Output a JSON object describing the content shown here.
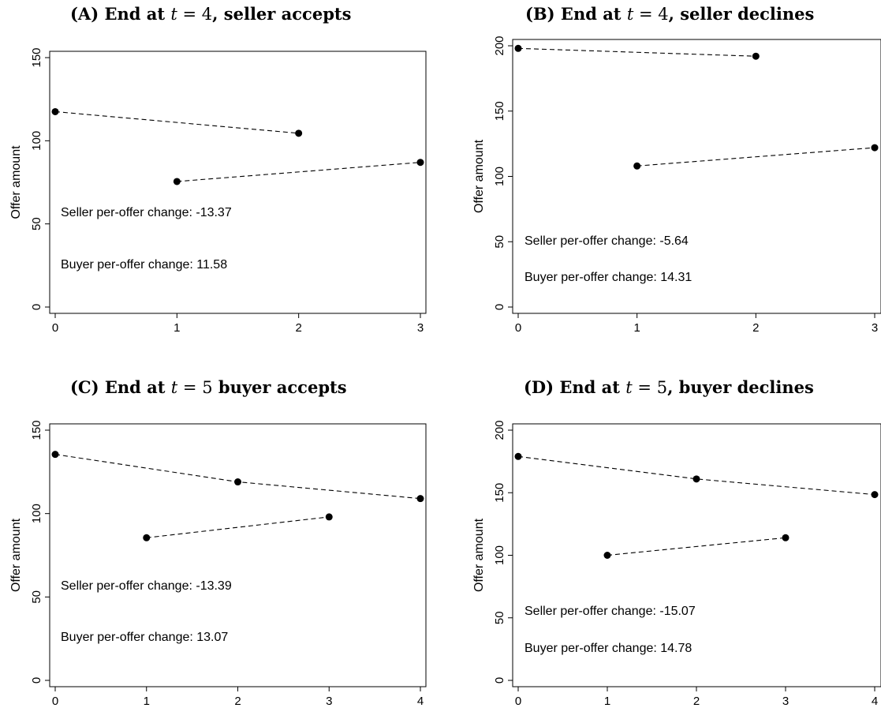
{
  "chart_data": [
    {
      "type": "scatter",
      "title": {
        "prefix": "(A) End at ",
        "var": "t",
        "eq": " = ",
        "num": "4",
        "suffix": ", seller accepts"
      },
      "ylabel": "Offer amount",
      "xlim": [
        0,
        3
      ],
      "ylim": [
        0,
        150
      ],
      "xticks": [
        0,
        1,
        2,
        3
      ],
      "yticks": [
        0,
        50,
        100,
        150
      ],
      "series": [
        {
          "role": "seller",
          "x": [
            0,
            2
          ],
          "y": [
            117.5,
            104.5
          ]
        },
        {
          "role": "buyer",
          "x": [
            1,
            3
          ],
          "y": [
            75.5,
            87
          ]
        }
      ],
      "annotations": [
        "Seller per-offer change: -13.37",
        "Buyer per-offer change: 11.58"
      ]
    },
    {
      "type": "scatter",
      "title": {
        "prefix": "(B) End at ",
        "var": "t",
        "eq": " = ",
        "num": "4",
        "suffix": ", seller declines"
      },
      "ylabel": "Offer amount",
      "xlim": [
        0,
        3
      ],
      "ylim": [
        0,
        200
      ],
      "xticks": [
        0,
        1,
        2,
        3
      ],
      "yticks": [
        0,
        50,
        100,
        150,
        200
      ],
      "series": [
        {
          "role": "seller",
          "x": [
            0,
            2
          ],
          "y": [
            198,
            192
          ]
        },
        {
          "role": "buyer",
          "x": [
            1,
            3
          ],
          "y": [
            108,
            122
          ]
        }
      ],
      "annotations": [
        "Seller per-offer change: -5.64",
        "Buyer per-offer change: 14.31"
      ]
    },
    {
      "type": "scatter",
      "title": {
        "prefix": "(C) End at ",
        "var": "t",
        "eq": " = ",
        "num": "5",
        "suffix": " buyer accepts"
      },
      "ylabel": "Offer amount",
      "xlim": [
        0,
        4
      ],
      "ylim": [
        0,
        150
      ],
      "xticks": [
        0,
        1,
        2,
        3,
        4
      ],
      "yticks": [
        0,
        50,
        100,
        150
      ],
      "series": [
        {
          "role": "seller",
          "x": [
            0,
            2,
            4
          ],
          "y": [
            135.5,
            119,
            109
          ]
        },
        {
          "role": "buyer",
          "x": [
            1,
            3
          ],
          "y": [
            85.5,
            98
          ]
        }
      ],
      "annotations": [
        "Seller per-offer change: -13.39",
        "Buyer per-offer change: 13.07"
      ]
    },
    {
      "type": "scatter",
      "title": {
        "prefix": "(D) End at ",
        "var": "t",
        "eq": " = ",
        "num": "5",
        "suffix": ", buyer declines"
      },
      "ylabel": "Offer amount",
      "xlim": [
        0,
        4
      ],
      "ylim": [
        0,
        200
      ],
      "xticks": [
        0,
        1,
        2,
        3,
        4
      ],
      "yticks": [
        0,
        50,
        100,
        150,
        200
      ],
      "series": [
        {
          "role": "seller",
          "x": [
            0,
            2,
            4
          ],
          "y": [
            179,
            161,
            148.5
          ]
        },
        {
          "role": "buyer",
          "x": [
            1,
            3
          ],
          "y": [
            100,
            114
          ]
        }
      ],
      "annotations": [
        "Seller per-offer change: -15.07",
        "Buyer per-offer change: 14.78"
      ]
    }
  ]
}
